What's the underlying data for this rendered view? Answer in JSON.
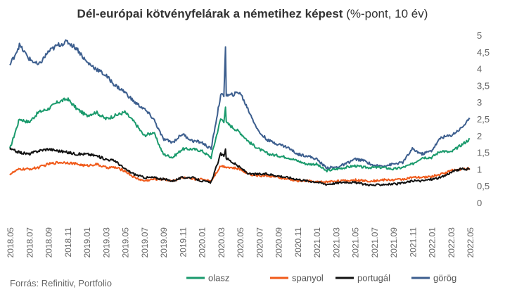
{
  "chart_data": {
    "type": "line",
    "title": "Dél-európai kötvényfelárak a németihez képest",
    "subtitle": "(%-pont, 10 év)",
    "xlabel": "",
    "ylabel": "",
    "ylim": [
      0,
      5
    ],
    "y_ticks": [
      "0",
      "0,5",
      "1",
      "1,5",
      "2",
      "2,5",
      "3",
      "3,5",
      "4",
      "4,5",
      "5"
    ],
    "x_ticks": [
      "2018.05",
      "2018.07",
      "2018.09",
      "2018.11",
      "2019.01",
      "2019.03",
      "2019.05",
      "2019.07",
      "2019.09",
      "2019.11",
      "2020.01",
      "2020.03",
      "2020.05",
      "2020.07",
      "2020.09",
      "2020.11",
      "2021.01",
      "2021.03",
      "2021.05",
      "2021.07",
      "2021.09",
      "2021.11",
      "2022.01",
      "2022.03",
      "2022.05"
    ],
    "y_axis_position": "right",
    "grid": false,
    "legend_position": "bottom",
    "series": [
      {
        "name": "olasz",
        "color": "#1a9a6c",
        "x": [
          "2018.05",
          "2018.06",
          "2018.07",
          "2018.08",
          "2018.09",
          "2018.10",
          "2018.11",
          "2018.12",
          "2019.01",
          "2019.02",
          "2019.03",
          "2019.04",
          "2019.05",
          "2019.06",
          "2019.07",
          "2019.08",
          "2019.09",
          "2019.10",
          "2019.11",
          "2019.12",
          "2020.01",
          "2020.02",
          "2020.03",
          "2020.04",
          "2020.05",
          "2020.06",
          "2020.07",
          "2020.08",
          "2020.09",
          "2020.10",
          "2020.11",
          "2020.12",
          "2021.01",
          "2021.02",
          "2021.03",
          "2021.04",
          "2021.05",
          "2021.06",
          "2021.07",
          "2021.08",
          "2021.09",
          "2021.10",
          "2021.11",
          "2021.12",
          "2022.01",
          "2022.02",
          "2022.03",
          "2022.04",
          "2022.05"
        ],
        "values": [
          1.6,
          2.5,
          2.4,
          2.7,
          2.8,
          3.0,
          3.1,
          2.8,
          2.6,
          2.7,
          2.5,
          2.6,
          2.7,
          2.4,
          2.0,
          2.1,
          1.45,
          1.35,
          1.6,
          1.6,
          1.55,
          1.35,
          2.5,
          2.3,
          2.1,
          1.8,
          1.6,
          1.45,
          1.4,
          1.35,
          1.25,
          1.15,
          1.15,
          0.95,
          1.0,
          1.05,
          1.1,
          1.05,
          1.05,
          1.05,
          1.0,
          1.05,
          1.15,
          1.35,
          1.35,
          1.55,
          1.5,
          1.7,
          1.9
        ]
      },
      {
        "name": "spanyol",
        "color": "#f05a1a",
        "x": [
          "2018.05",
          "2018.06",
          "2018.07",
          "2018.08",
          "2018.09",
          "2018.10",
          "2018.11",
          "2018.12",
          "2019.01",
          "2019.02",
          "2019.03",
          "2019.04",
          "2019.05",
          "2019.06",
          "2019.07",
          "2019.08",
          "2019.09",
          "2019.10",
          "2019.11",
          "2019.12",
          "2020.01",
          "2020.02",
          "2020.03",
          "2020.04",
          "2020.05",
          "2020.06",
          "2020.07",
          "2020.08",
          "2020.09",
          "2020.10",
          "2020.11",
          "2020.12",
          "2021.01",
          "2021.02",
          "2021.03",
          "2021.04",
          "2021.05",
          "2021.06",
          "2021.07",
          "2021.08",
          "2021.09",
          "2021.10",
          "2021.11",
          "2021.12",
          "2022.01",
          "2022.02",
          "2022.03",
          "2022.04",
          "2022.05"
        ],
        "values": [
          0.85,
          1.0,
          1.0,
          1.05,
          1.15,
          1.2,
          1.2,
          1.15,
          1.1,
          1.15,
          1.05,
          1.05,
          0.95,
          0.75,
          0.65,
          0.7,
          0.7,
          0.65,
          0.75,
          0.7,
          0.7,
          0.65,
          1.1,
          1.05,
          1.0,
          0.85,
          0.8,
          0.8,
          0.75,
          0.7,
          0.65,
          0.65,
          0.62,
          0.62,
          0.65,
          0.65,
          0.68,
          0.65,
          0.65,
          0.68,
          0.68,
          0.7,
          0.75,
          0.75,
          0.78,
          0.85,
          0.95,
          1.0,
          1.02
        ]
      },
      {
        "name": "portugál",
        "color": "#111111",
        "x": [
          "2018.05",
          "2018.06",
          "2018.07",
          "2018.08",
          "2018.09",
          "2018.10",
          "2018.11",
          "2018.12",
          "2019.01",
          "2019.02",
          "2019.03",
          "2019.04",
          "2019.05",
          "2019.06",
          "2019.07",
          "2019.08",
          "2019.09",
          "2019.10",
          "2019.11",
          "2019.12",
          "2020.01",
          "2020.02",
          "2020.03",
          "2020.04",
          "2020.05",
          "2020.06",
          "2020.07",
          "2020.08",
          "2020.09",
          "2020.10",
          "2020.11",
          "2020.12",
          "2021.01",
          "2021.02",
          "2021.03",
          "2021.04",
          "2021.05",
          "2021.06",
          "2021.07",
          "2021.08",
          "2021.09",
          "2021.10",
          "2021.11",
          "2021.12",
          "2022.01",
          "2022.02",
          "2022.03",
          "2022.04",
          "2022.05"
        ],
        "values": [
          1.6,
          1.5,
          1.45,
          1.55,
          1.6,
          1.55,
          1.5,
          1.45,
          1.45,
          1.4,
          1.3,
          1.25,
          1.0,
          0.85,
          0.75,
          0.75,
          0.7,
          0.65,
          0.75,
          0.75,
          0.65,
          0.6,
          1.45,
          1.25,
          1.05,
          0.85,
          0.85,
          0.85,
          0.8,
          0.75,
          0.7,
          0.65,
          0.62,
          0.55,
          0.58,
          0.62,
          0.6,
          0.55,
          0.52,
          0.55,
          0.55,
          0.58,
          0.65,
          0.65,
          0.7,
          0.75,
          0.9,
          1.0,
          1.0
        ]
      },
      {
        "name": "görög",
        "color": "#3c5e8e",
        "x": [
          "2018.05",
          "2018.06",
          "2018.07",
          "2018.08",
          "2018.09",
          "2018.10",
          "2018.11",
          "2018.12",
          "2019.01",
          "2019.02",
          "2019.03",
          "2019.04",
          "2019.05",
          "2019.06",
          "2019.07",
          "2019.08",
          "2019.09",
          "2019.10",
          "2019.11",
          "2019.12",
          "2020.01",
          "2020.02",
          "2020.03",
          "2020.04",
          "2020.05",
          "2020.06",
          "2020.07",
          "2020.08",
          "2020.09",
          "2020.10",
          "2020.11",
          "2020.12",
          "2021.01",
          "2021.02",
          "2021.03",
          "2021.04",
          "2021.05",
          "2021.06",
          "2021.07",
          "2021.08",
          "2021.09",
          "2021.10",
          "2021.11",
          "2021.12",
          "2022.01",
          "2022.02",
          "2022.03",
          "2022.04",
          "2022.05"
        ],
        "values": [
          4.1,
          4.7,
          4.3,
          4.1,
          4.5,
          4.7,
          4.8,
          4.6,
          4.2,
          4.0,
          3.8,
          3.5,
          3.3,
          3.0,
          2.8,
          2.5,
          1.9,
          1.8,
          2.05,
          1.85,
          1.8,
          1.6,
          3.2,
          3.2,
          3.3,
          2.7,
          2.1,
          1.85,
          1.75,
          1.65,
          1.45,
          1.4,
          1.3,
          1.05,
          1.05,
          1.15,
          1.3,
          1.25,
          1.1,
          1.1,
          1.15,
          1.2,
          1.6,
          1.45,
          1.55,
          1.95,
          2.0,
          2.2,
          2.5
        ]
      }
    ],
    "spikes": [
      {
        "series": 3,
        "x": "2020.03",
        "value": 4.65
      },
      {
        "series": 0,
        "x": "2020.03",
        "value": 2.85
      },
      {
        "series": 2,
        "x": "2020.03",
        "value": 1.6
      }
    ]
  },
  "title": {
    "bold": "Dél-európai kötvényfelárak a németihez képest",
    "normal": " (%-pont, 10 év)"
  },
  "source": "Forrás: Refinitiv, Portfolio"
}
